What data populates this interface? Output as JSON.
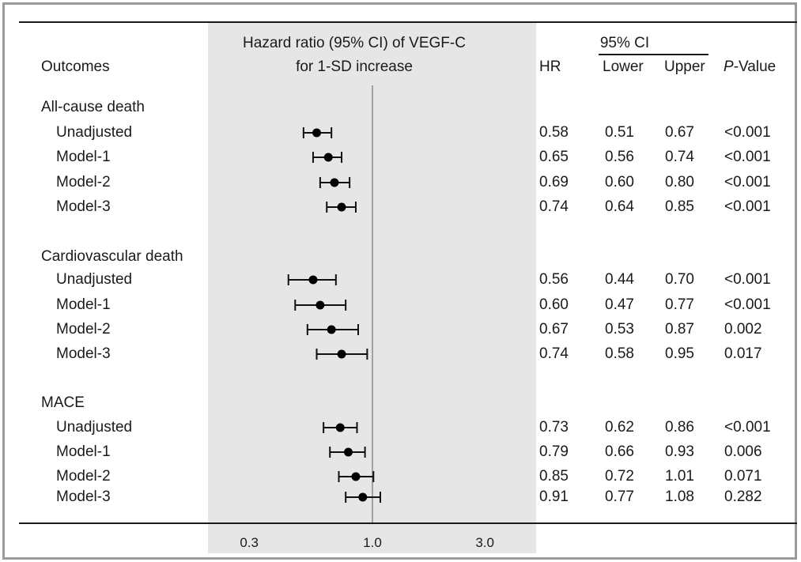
{
  "header": {
    "outcomes": "Outcomes",
    "plot_title_line1": "Hazard ratio (95% CI) of VEGF-C",
    "plot_title_line2": "for 1-SD increase",
    "hr": "HR",
    "ci": "95% CI",
    "lower": "Lower",
    "upper": "Upper",
    "p_italic": "P",
    "p_rest": "-Value"
  },
  "chart_data": {
    "type": "forest",
    "x_scale": "log",
    "reference_line": 1.0,
    "xlim": [
      0.2,
      5.0
    ],
    "x_ticks": [
      "0.3",
      "1.0",
      "3.0"
    ],
    "groups": [
      {
        "title": "All-cause death",
        "rows": [
          {
            "label": "Unadjusted",
            "hr": "0.58",
            "lower": "0.51",
            "upper": "0.67",
            "p": "<0.001"
          },
          {
            "label": "Model-1",
            "hr": "0.65",
            "lower": "0.56",
            "upper": "0.74",
            "p": "<0.001"
          },
          {
            "label": "Model-2",
            "hr": "0.69",
            "lower": "0.60",
            "upper": "0.80",
            "p": "<0.001"
          },
          {
            "label": "Model-3",
            "hr": "0.74",
            "lower": "0.64",
            "upper": "0.85",
            "p": "<0.001"
          }
        ]
      },
      {
        "title": "Cardiovascular death",
        "rows": [
          {
            "label": "Unadjusted",
            "hr": "0.56",
            "lower": "0.44",
            "upper": "0.70",
            "p": "<0.001"
          },
          {
            "label": "Model-1",
            "hr": "0.60",
            "lower": "0.47",
            "upper": "0.77",
            "p": "<0.001"
          },
          {
            "label": "Model-2",
            "hr": "0.67",
            "lower": "0.53",
            "upper": "0.87",
            "p": "0.002"
          },
          {
            "label": "Model-3",
            "hr": "0.74",
            "lower": "0.58",
            "upper": "0.95",
            "p": "0.017"
          }
        ]
      },
      {
        "title": "MACE",
        "rows": [
          {
            "label": "Unadjusted",
            "hr": "0.73",
            "lower": "0.62",
            "upper": "0.86",
            "p": "<0.001"
          },
          {
            "label": "Model-1",
            "hr": "0.79",
            "lower": "0.66",
            "upper": "0.93",
            "p": "0.006"
          },
          {
            "label": "Model-2",
            "hr": "0.85",
            "lower": "0.72",
            "upper": "1.01",
            "p": "0.071"
          },
          {
            "label": "Model-3",
            "hr": "0.91",
            "lower": "0.77",
            "upper": "1.08",
            "p": "0.282"
          }
        ]
      }
    ]
  }
}
